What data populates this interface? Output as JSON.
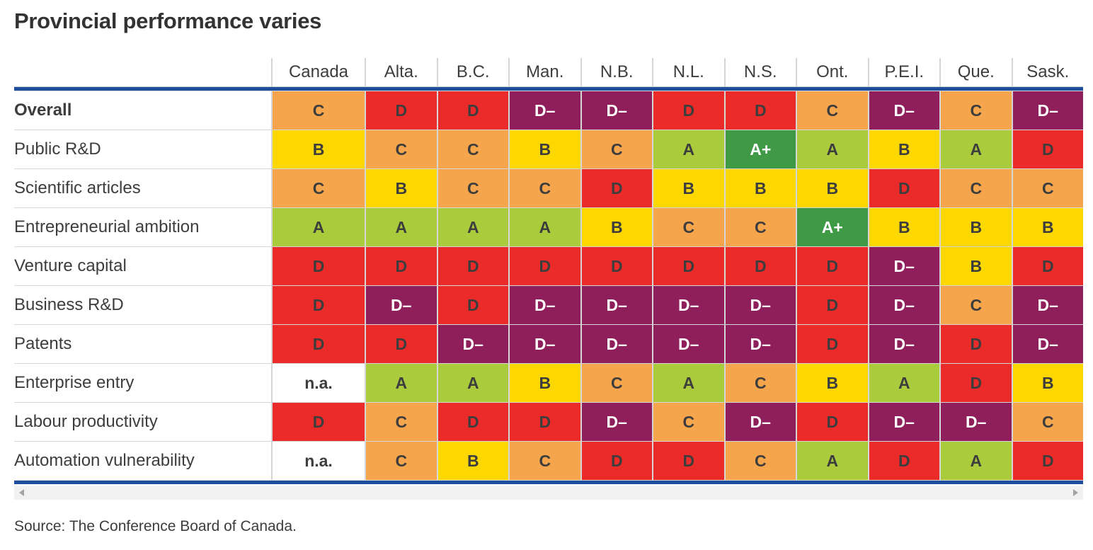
{
  "title": "Provincial performance varies",
  "source": "Source: The Conference Board of Canada.",
  "colors": {
    "accent_blue": "#1E4D9E",
    "gridline": "#D6D6D6",
    "text_dark": "#3D3D3D",
    "scrollbar_track": "#F1F1F1",
    "scrollbar_arrow": "#A3A3A3",
    "grade_fills": {
      "A+": "#3F9945",
      "A": "#A9CB3C",
      "B": "#FDD700",
      "C": "#F5A54B",
      "D": "#EA2B2A",
      "D–": "#8E1F5B",
      "n.a.": "#FFFFFF"
    },
    "white_text_grades": [
      "A+",
      "D–"
    ]
  },
  "scrollbar": {
    "left_icon": "scroll-left-arrow",
    "right_icon": "scroll-right-arrow"
  },
  "chart_data": {
    "type": "heatmap",
    "title": "Provincial performance varies",
    "value_scale": [
      "A+",
      "A",
      "B",
      "C",
      "D",
      "D–",
      "n.a."
    ],
    "columns": [
      "Canada",
      "Alta.",
      "B.C.",
      "Man.",
      "N.B.",
      "N.L.",
      "N.S.",
      "Ont.",
      "P.E.I.",
      "Que.",
      "Sask."
    ],
    "rows": [
      {
        "label": "Overall",
        "bold": true,
        "grades": [
          "C",
          "D",
          "D",
          "D–",
          "D–",
          "D",
          "D",
          "C",
          "D–",
          "C",
          "D–"
        ]
      },
      {
        "label": "Public R&D",
        "bold": false,
        "grades": [
          "B",
          "C",
          "C",
          "B",
          "C",
          "A",
          "A+",
          "A",
          "B",
          "A",
          "D"
        ]
      },
      {
        "label": "Scientific articles",
        "bold": false,
        "grades": [
          "C",
          "B",
          "C",
          "C",
          "D",
          "B",
          "B",
          "B",
          "D",
          "C",
          "C"
        ]
      },
      {
        "label": "Entrepreneurial ambition",
        "bold": false,
        "grades": [
          "A",
          "A",
          "A",
          "A",
          "B",
          "C",
          "C",
          "A+",
          "B",
          "B",
          "B"
        ]
      },
      {
        "label": "Venture capital",
        "bold": false,
        "grades": [
          "D",
          "D",
          "D",
          "D",
          "D",
          "D",
          "D",
          "D",
          "D–",
          "B",
          "D"
        ]
      },
      {
        "label": "Business R&D",
        "bold": false,
        "grades": [
          "D",
          "D–",
          "D",
          "D–",
          "D–",
          "D–",
          "D–",
          "D",
          "D–",
          "C",
          "D–"
        ]
      },
      {
        "label": "Patents",
        "bold": false,
        "grades": [
          "D",
          "D",
          "D–",
          "D–",
          "D–",
          "D–",
          "D–",
          "D",
          "D–",
          "D",
          "D–"
        ]
      },
      {
        "label": "Enterprise entry",
        "bold": false,
        "grades": [
          "n.a.",
          "A",
          "A",
          "B",
          "C",
          "A",
          "C",
          "B",
          "A",
          "D",
          "B"
        ]
      },
      {
        "label": "Labour productivity",
        "bold": false,
        "grades": [
          "D",
          "C",
          "D",
          "D",
          "D–",
          "C",
          "D–",
          "D",
          "D–",
          "D–",
          "C"
        ]
      },
      {
        "label": "Automation vulnerability",
        "bold": false,
        "grades": [
          "n.a.",
          "C",
          "B",
          "C",
          "D",
          "D",
          "C",
          "A",
          "D",
          "A",
          "D"
        ]
      }
    ]
  }
}
